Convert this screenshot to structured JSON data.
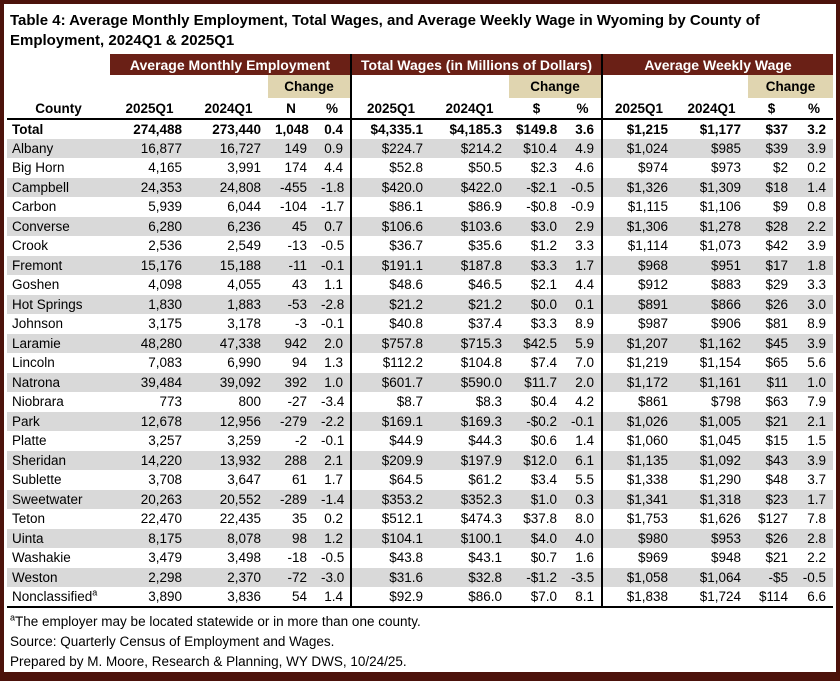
{
  "page": {
    "title": "Table 4: Average Monthly Employment, Total Wages, and Average Weekly Wage in Wyoming by County of Employment, 2024Q1 & 2025Q1"
  },
  "colors": {
    "header_maroon": "#6a2016",
    "change_tan": "#e0d5b0",
    "row_stripe_gray": "#d9d9d9",
    "frame_maroon": "#4c120b"
  },
  "table": {
    "sections": [
      {
        "label": "Average Monthly Employment"
      },
      {
        "label": "Total Wages (in Millions of Dollars)"
      },
      {
        "label": "Average Weekly Wage"
      }
    ],
    "change_label": "Change",
    "headers": {
      "county": "County",
      "q_new": "2025Q1",
      "q_old": "2024Q1",
      "n": "N",
      "pct": "%",
      "dollar": "$"
    },
    "rows": [
      {
        "c": "Total",
        "total": true,
        "v": [
          "274,488",
          "273,440",
          "1,048",
          "0.4",
          "$4,335.1",
          "$4,185.3",
          "$149.8",
          "3.6",
          "$1,215",
          "$1,177",
          "$37",
          "3.2"
        ]
      },
      {
        "c": "Albany",
        "v": [
          "16,877",
          "16,727",
          "149",
          "0.9",
          "$224.7",
          "$214.2",
          "$10.4",
          "4.9",
          "$1,024",
          "$985",
          "$39",
          "3.9"
        ]
      },
      {
        "c": "Big Horn",
        "v": [
          "4,165",
          "3,991",
          "174",
          "4.4",
          "$52.8",
          "$50.5",
          "$2.3",
          "4.6",
          "$974",
          "$973",
          "$2",
          "0.2"
        ]
      },
      {
        "c": "Campbell",
        "v": [
          "24,353",
          "24,808",
          "-455",
          "-1.8",
          "$420.0",
          "$422.0",
          "-$2.1",
          "-0.5",
          "$1,326",
          "$1,309",
          "$18",
          "1.4"
        ]
      },
      {
        "c": "Carbon",
        "v": [
          "5,939",
          "6,044",
          "-104",
          "-1.7",
          "$86.1",
          "$86.9",
          "-$0.8",
          "-0.9",
          "$1,115",
          "$1,106",
          "$9",
          "0.8"
        ]
      },
      {
        "c": "Converse",
        "v": [
          "6,280",
          "6,236",
          "45",
          "0.7",
          "$106.6",
          "$103.6",
          "$3.0",
          "2.9",
          "$1,306",
          "$1,278",
          "$28",
          "2.2"
        ]
      },
      {
        "c": "Crook",
        "v": [
          "2,536",
          "2,549",
          "-13",
          "-0.5",
          "$36.7",
          "$35.6",
          "$1.2",
          "3.3",
          "$1,114",
          "$1,073",
          "$42",
          "3.9"
        ]
      },
      {
        "c": "Fremont",
        "v": [
          "15,176",
          "15,188",
          "-11",
          "-0.1",
          "$191.1",
          "$187.8",
          "$3.3",
          "1.7",
          "$968",
          "$951",
          "$17",
          "1.8"
        ]
      },
      {
        "c": "Goshen",
        "v": [
          "4,098",
          "4,055",
          "43",
          "1.1",
          "$48.6",
          "$46.5",
          "$2.1",
          "4.4",
          "$912",
          "$883",
          "$29",
          "3.3"
        ]
      },
      {
        "c": "Hot Springs",
        "v": [
          "1,830",
          "1,883",
          "-53",
          "-2.8",
          "$21.2",
          "$21.2",
          "$0.0",
          "0.1",
          "$891",
          "$866",
          "$26",
          "3.0"
        ]
      },
      {
        "c": "Johnson",
        "v": [
          "3,175",
          "3,178",
          "-3",
          "-0.1",
          "$40.8",
          "$37.4",
          "$3.3",
          "8.9",
          "$987",
          "$906",
          "$81",
          "8.9"
        ]
      },
      {
        "c": "Laramie",
        "v": [
          "48,280",
          "47,338",
          "942",
          "2.0",
          "$757.8",
          "$715.3",
          "$42.5",
          "5.9",
          "$1,207",
          "$1,162",
          "$45",
          "3.9"
        ]
      },
      {
        "c": "Lincoln",
        "v": [
          "7,083",
          "6,990",
          "94",
          "1.3",
          "$112.2",
          "$104.8",
          "$7.4",
          "7.0",
          "$1,219",
          "$1,154",
          "$65",
          "5.6"
        ]
      },
      {
        "c": "Natrona",
        "v": [
          "39,484",
          "39,092",
          "392",
          "1.0",
          "$601.7",
          "$590.0",
          "$11.7",
          "2.0",
          "$1,172",
          "$1,161",
          "$11",
          "1.0"
        ]
      },
      {
        "c": "Niobrara",
        "v": [
          "773",
          "800",
          "-27",
          "-3.4",
          "$8.7",
          "$8.3",
          "$0.4",
          "4.2",
          "$861",
          "$798",
          "$63",
          "7.9"
        ]
      },
      {
        "c": "Park",
        "v": [
          "12,678",
          "12,956",
          "-279",
          "-2.2",
          "$169.1",
          "$169.3",
          "-$0.2",
          "-0.1",
          "$1,026",
          "$1,005",
          "$21",
          "2.1"
        ]
      },
      {
        "c": "Platte",
        "v": [
          "3,257",
          "3,259",
          "-2",
          "-0.1",
          "$44.9",
          "$44.3",
          "$0.6",
          "1.4",
          "$1,060",
          "$1,045",
          "$15",
          "1.5"
        ]
      },
      {
        "c": "Sheridan",
        "v": [
          "14,220",
          "13,932",
          "288",
          "2.1",
          "$209.9",
          "$197.9",
          "$12.0",
          "6.1",
          "$1,135",
          "$1,092",
          "$43",
          "3.9"
        ]
      },
      {
        "c": "Sublette",
        "v": [
          "3,708",
          "3,647",
          "61",
          "1.7",
          "$64.5",
          "$61.2",
          "$3.4",
          "5.5",
          "$1,338",
          "$1,290",
          "$48",
          "3.7"
        ]
      },
      {
        "c": "Sweetwater",
        "v": [
          "20,263",
          "20,552",
          "-289",
          "-1.4",
          "$353.2",
          "$352.3",
          "$1.0",
          "0.3",
          "$1,341",
          "$1,318",
          "$23",
          "1.7"
        ]
      },
      {
        "c": "Teton",
        "v": [
          "22,470",
          "22,435",
          "35",
          "0.2",
          "$512.1",
          "$474.3",
          "$37.8",
          "8.0",
          "$1,753",
          "$1,626",
          "$127",
          "7.8"
        ]
      },
      {
        "c": "Uinta",
        "v": [
          "8,175",
          "8,078",
          "98",
          "1.2",
          "$104.1",
          "$100.1",
          "$4.0",
          "4.0",
          "$980",
          "$953",
          "$26",
          "2.8"
        ]
      },
      {
        "c": "Washakie",
        "v": [
          "3,479",
          "3,498",
          "-18",
          "-0.5",
          "$43.8",
          "$43.1",
          "$0.7",
          "1.6",
          "$969",
          "$948",
          "$21",
          "2.2"
        ]
      },
      {
        "c": "Weston",
        "v": [
          "2,298",
          "2,370",
          "-72",
          "-3.0",
          "$31.6",
          "$32.8",
          "-$1.2",
          "-3.5",
          "$1,058",
          "$1,064",
          "-$5",
          "-0.5"
        ]
      },
      {
        "c": "Nonclassified",
        "sup": "a",
        "v": [
          "3,890",
          "3,836",
          "54",
          "1.4",
          "$92.9",
          "$86.0",
          "$7.0",
          "8.1",
          "$1,838",
          "$1,724",
          "$114",
          "6.6"
        ]
      }
    ]
  },
  "footnotes": [
    {
      "sup": "a",
      "text": "The employer may be located statewide or in more than one county."
    },
    {
      "sup": "",
      "text": "Source: Quarterly Census of Employment and Wages."
    },
    {
      "sup": "",
      "text": "Prepared by M. Moore, Research & Planning, WY DWS, 10/24/25."
    }
  ]
}
